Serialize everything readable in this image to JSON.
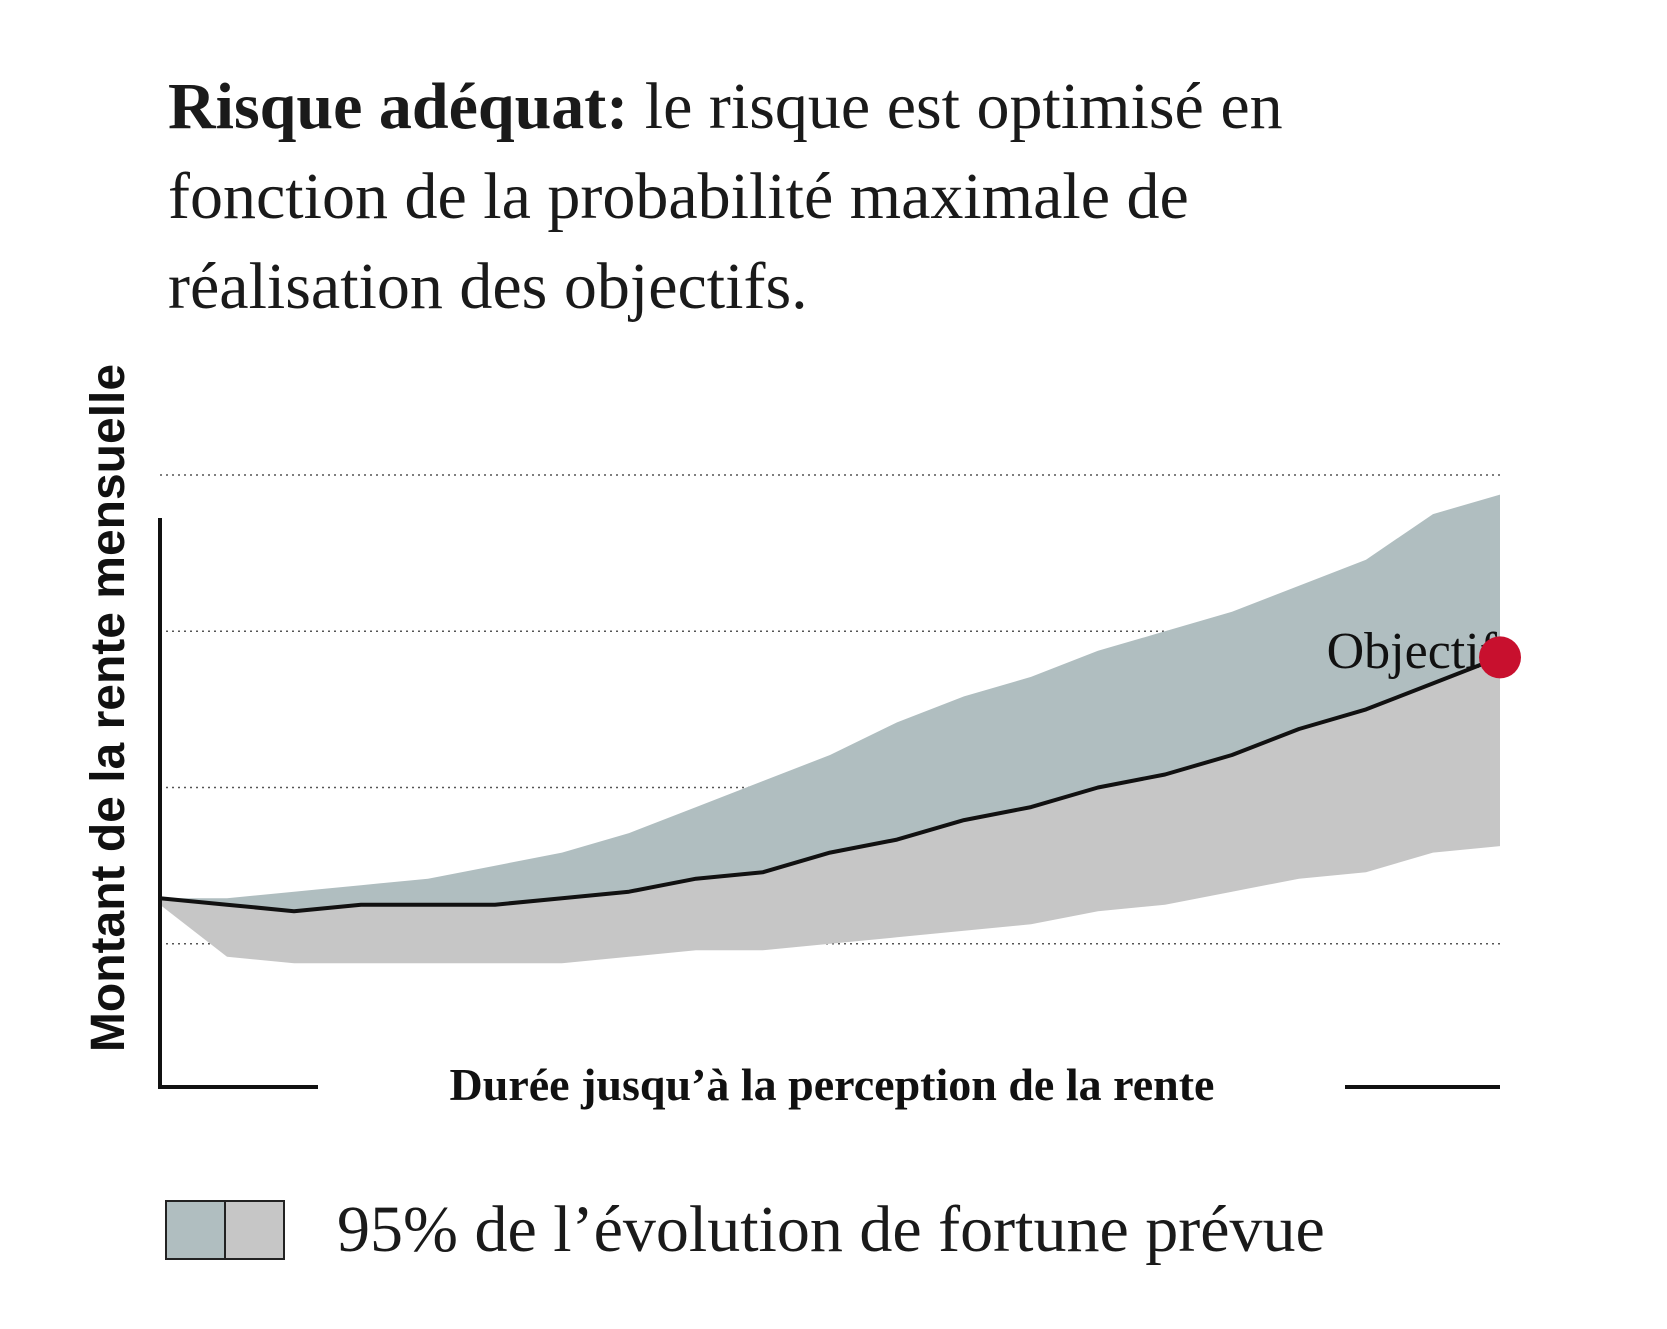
{
  "headline": {
    "bold": "Risque adéquat:",
    "text": " le risque est optimisé en fonction de la probabilité maximale de réalisation des objectifs."
  },
  "chart_data": {
    "type": "area",
    "xlabel": "Durée jusqu’à la perception de la rente",
    "ylabel": "Montant de la rente mensuelle",
    "xlim": [
      0,
      100
    ],
    "ylim": [
      0,
      100
    ],
    "grid": true,
    "grid_y": [
      22,
      46,
      70,
      94
    ],
    "x": [
      0,
      5,
      10,
      15,
      20,
      25,
      30,
      35,
      40,
      45,
      50,
      55,
      60,
      65,
      70,
      75,
      80,
      85,
      90,
      95,
      100
    ],
    "band_upper": [
      29,
      29,
      30,
      31,
      32,
      34,
      36,
      39,
      43,
      47,
      51,
      56,
      60,
      63,
      67,
      70,
      73,
      77,
      81,
      88,
      91
    ],
    "median": [
      29,
      28,
      27,
      28,
      28,
      28,
      29,
      30,
      32,
      33,
      36,
      38,
      41,
      43,
      46,
      48,
      51,
      55,
      58,
      62,
      66
    ],
    "band_lower": [
      28,
      20,
      19,
      19,
      19,
      19,
      19,
      20,
      21,
      21,
      22,
      23,
      24,
      25,
      27,
      28,
      30,
      32,
      33,
      36,
      37
    ],
    "band_color_upper": "#b0bec0",
    "band_color_lower": "#c6c6c6",
    "line_color": "#111111",
    "target": {
      "label": "Objectif",
      "x": 100,
      "y": 66,
      "color": "#c8102e"
    }
  },
  "legend": {
    "label": "95% de l’évolution de fortune prévue",
    "colors": [
      "#b0bec0",
      "#c6c6c6"
    ]
  }
}
